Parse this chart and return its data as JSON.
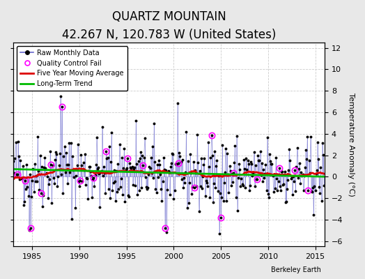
{
  "title": "QUARTZ MOUNTAIN",
  "subtitle": "42.267 N, 120.783 W (United States)",
  "credit": "Berkeley Earth",
  "ylabel": "Temperature Anomaly (°C)",
  "xlim": [
    1983.0,
    2016.0
  ],
  "ylim": [
    -6.5,
    12.5
  ],
  "yticks": [
    -6,
    -4,
    -2,
    0,
    2,
    4,
    6,
    8,
    10,
    12
  ],
  "xticks": [
    1985,
    1990,
    1995,
    2000,
    2005,
    2010,
    2015
  ],
  "bg_color": "#e8e8e8",
  "plot_bg_color": "#ffffff",
  "line_color": "#6666cc",
  "ma_color": "#dd0000",
  "trend_color": "#00bb00",
  "qc_fail_color": "#ff00ff",
  "grid_color": "#cccccc",
  "title_fontsize": 12,
  "subtitle_fontsize": 9,
  "seed": 42
}
